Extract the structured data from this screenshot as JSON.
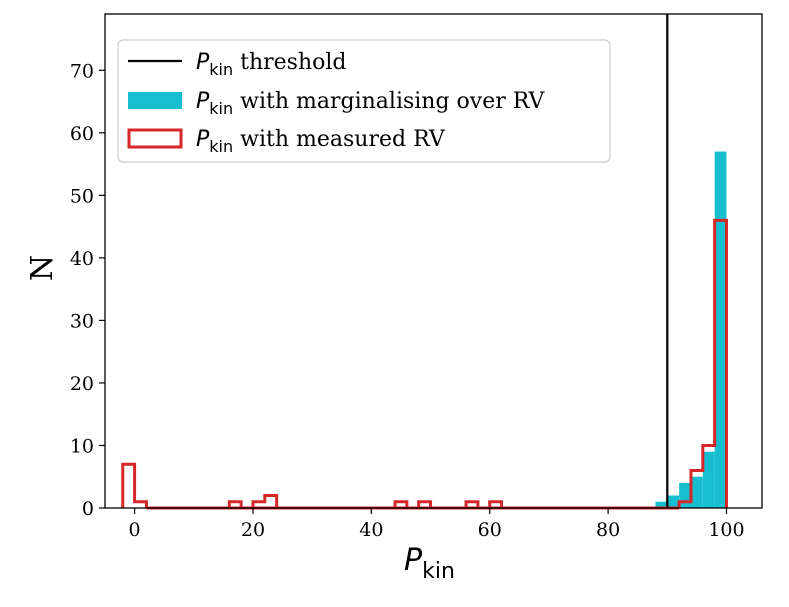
{
  "chart_data": {
    "type": "histogram",
    "xlabel": {
      "main": "P",
      "sub": "kin"
    },
    "ylabel": "N",
    "xlim": [
      -5,
      106
    ],
    "ylim": [
      0,
      79
    ],
    "xticks": [
      0,
      20,
      40,
      60,
      80,
      100
    ],
    "yticks": [
      0,
      10,
      20,
      30,
      40,
      50,
      60,
      70
    ],
    "bin_width": 2,
    "threshold": {
      "x": 90,
      "color": "#000000"
    },
    "series": [
      {
        "name": "with marginalising over RV",
        "style": "filled",
        "color": "#17becf",
        "bins": [
          {
            "x": 89,
            "count": 1
          },
          {
            "x": 91,
            "count": 2
          },
          {
            "x": 93,
            "count": 4
          },
          {
            "x": 95,
            "count": 5
          },
          {
            "x": 97,
            "count": 9
          },
          {
            "x": 99,
            "count": 57
          }
        ]
      },
      {
        "name": "with measured RV",
        "style": "step",
        "color": "#d62728",
        "bins": [
          {
            "x": -1,
            "count": 7
          },
          {
            "x": 1,
            "count": 1
          },
          {
            "x": 17,
            "count": 1
          },
          {
            "x": 21,
            "count": 1
          },
          {
            "x": 23,
            "count": 2
          },
          {
            "x": 45,
            "count": 1
          },
          {
            "x": 49,
            "count": 1
          },
          {
            "x": 57,
            "count": 1
          },
          {
            "x": 61,
            "count": 1
          },
          {
            "x": 93,
            "count": 1
          },
          {
            "x": 95,
            "count": 6
          },
          {
            "x": 97,
            "count": 10
          },
          {
            "x": 99,
            "count": 46
          }
        ]
      }
    ],
    "legend": {
      "position": "upper-left",
      "entries": [
        {
          "symbol": "line",
          "color": "#000000",
          "math": "P",
          "sub": "kin",
          "text": "threshold"
        },
        {
          "symbol": "filled",
          "color": "#17becf",
          "math": "P",
          "sub": "kin",
          "text": "with marginalising over RV"
        },
        {
          "symbol": "step",
          "color": "#d62728",
          "math": "P",
          "sub": "kin",
          "text": "with measured RV"
        }
      ]
    }
  }
}
